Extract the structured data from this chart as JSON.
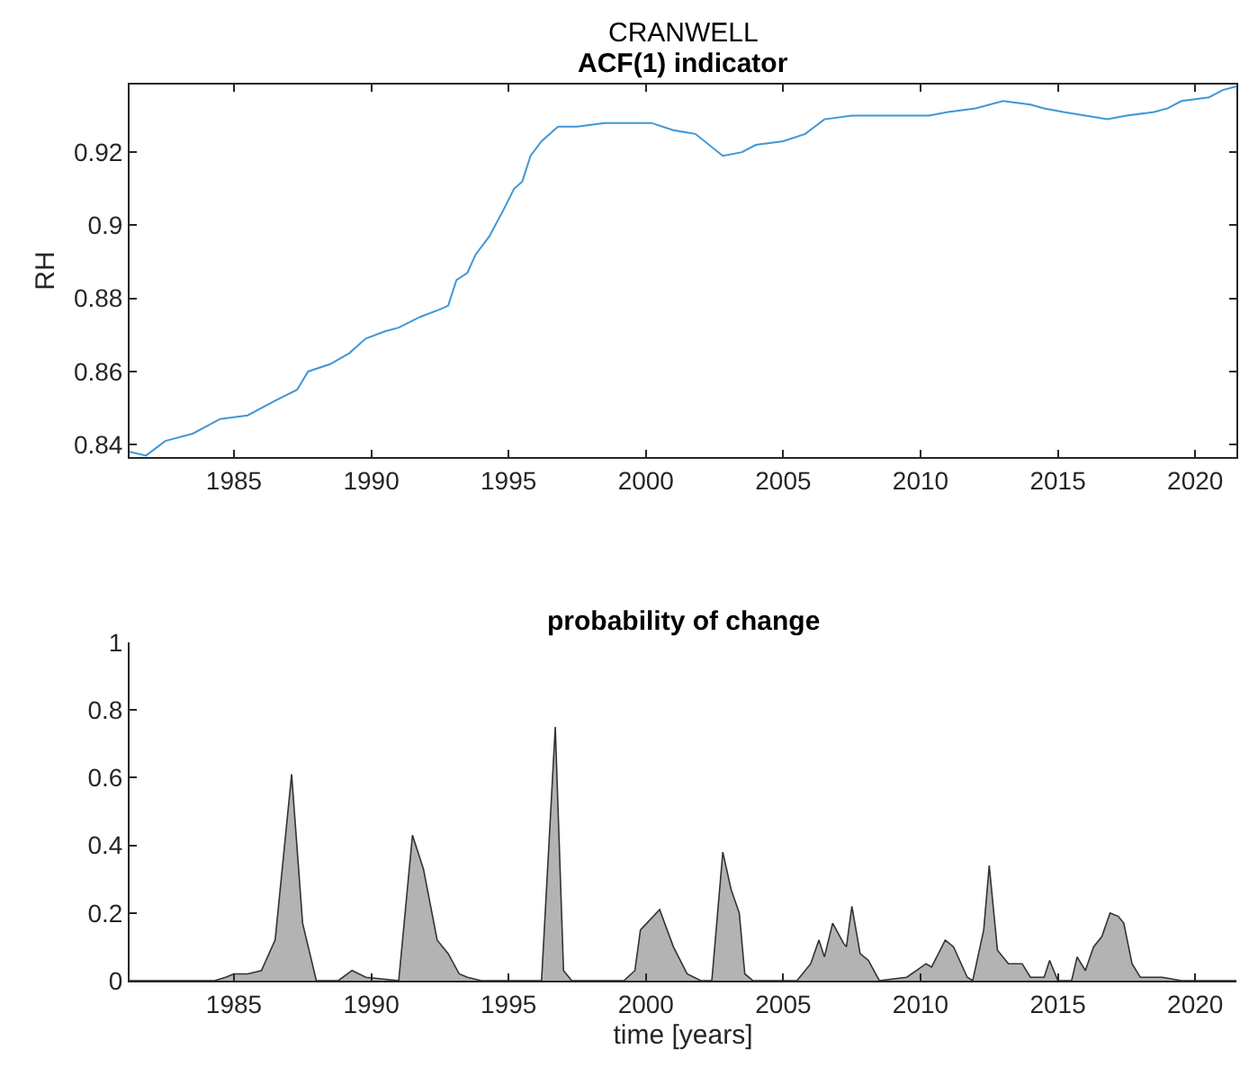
{
  "chart_data": [
    {
      "type": "line",
      "title": "CRANWELL",
      "subtitle": "ACF(1) indicator",
      "ylabel": "RH",
      "xlim": [
        1981.2,
        2021.5
      ],
      "xticks": [
        1985,
        1990,
        1995,
        2000,
        2005,
        2010,
        2015,
        2020
      ],
      "ylim": [
        0.8366,
        0.9385
      ],
      "yticks": [
        0.84,
        0.86,
        0.88,
        0.9,
        0.92
      ],
      "marker": "none",
      "line_style": "solid",
      "x": [
        1981.2,
        1981.8,
        1982.5,
        1983.5,
        1984.5,
        1985.5,
        1986.5,
        1987.3,
        1987.7,
        1988.5,
        1989.2,
        1989.8,
        1990.5,
        1991,
        1991.8,
        1992.5,
        1992.8,
        1993.1,
        1993.5,
        1993.8,
        1994.3,
        1994.8,
        1995.2,
        1995.5,
        1995.8,
        1996.2,
        1996.8,
        1997.5,
        1998.5,
        1999.5,
        2000.2,
        2001,
        2001.8,
        2002.8,
        2003.5,
        2004,
        2005,
        2005.8,
        2006.5,
        2007.5,
        2008.5,
        2009.5,
        2010.3,
        2011,
        2012,
        2013,
        2014,
        2014.5,
        2015.2,
        2016,
        2016.8,
        2017.5,
        2018.5,
        2019,
        2019.5,
        2020.5,
        2021,
        2021.5
      ],
      "series": [
        {
          "color": "#3f97d6",
          "values": [
            0.838,
            0.837,
            0.841,
            0.843,
            0.847,
            0.848,
            0.852,
            0.855,
            0.86,
            0.862,
            0.865,
            0.869,
            0.871,
            0.872,
            0.875,
            0.877,
            0.878,
            0.885,
            0.887,
            0.892,
            0.897,
            0.904,
            0.91,
            0.912,
            0.919,
            0.923,
            0.927,
            0.927,
            0.928,
            0.928,
            0.928,
            0.926,
            0.925,
            0.919,
            0.92,
            0.922,
            0.923,
            0.925,
            0.929,
            0.93,
            0.93,
            0.93,
            0.93,
            0.931,
            0.932,
            0.934,
            0.933,
            0.932,
            0.931,
            0.93,
            0.929,
            0.93,
            0.931,
            0.932,
            0.934,
            0.935,
            0.937,
            0.938
          ]
        }
      ]
    },
    {
      "type": "area",
      "title": "probability of change",
      "xlabel": "time [years]",
      "xlim": [
        1981.2,
        2021.5
      ],
      "xticks": [
        1985,
        1990,
        1995,
        2000,
        2005,
        2010,
        2015,
        2020
      ],
      "ylim": [
        0,
        1
      ],
      "yticks": [
        0,
        0.2,
        0.4,
        0.6,
        0.8,
        1
      ],
      "x": [
        1981.2,
        1984.3,
        1984.7,
        1985,
        1985.5,
        1986,
        1986.5,
        1987.1,
        1987.5,
        1988,
        1988.8,
        1989.3,
        1989.8,
        1991,
        1991.5,
        1991.9,
        1992.4,
        1992.8,
        1993.2,
        1993.5,
        1994,
        1996.2,
        1996.7,
        1997,
        1997.3,
        1999.2,
        1999.6,
        1999.8,
        2000.5,
        2001,
        2001.5,
        2002,
        2002.4,
        2002.8,
        2003.1,
        2003.4,
        2003.6,
        2003.9,
        2005.5,
        2006,
        2006.3,
        2006.5,
        2006.8,
        2007.2,
        2007.3,
        2007.5,
        2007.8,
        2008.1,
        2008.5,
        2009.5,
        2010.2,
        2010.4,
        2010.9,
        2011.2,
        2011.7,
        2011.9,
        2012.3,
        2012.5,
        2012.8,
        2013.2,
        2013.7,
        2014,
        2014.5,
        2014.7,
        2015,
        2015.5,
        2015.7,
        2016,
        2016.3,
        2016.6,
        2016.9,
        2017.2,
        2017.4,
        2017.7,
        2018,
        2018.8,
        2019.5,
        2021.5
      ],
      "series": [
        {
          "color": "#b3b3b3",
          "values": [
            0,
            0,
            0.01,
            0.02,
            0.02,
            0.03,
            0.12,
            0.61,
            0.17,
            0,
            0,
            0.03,
            0.01,
            0,
            0.43,
            0.33,
            0.12,
            0.08,
            0.02,
            0.01,
            0,
            0,
            0.75,
            0.03,
            0,
            0,
            0.03,
            0.15,
            0.21,
            0.1,
            0.02,
            0,
            0,
            0.38,
            0.27,
            0.2,
            0.02,
            0,
            0,
            0.05,
            0.12,
            0.07,
            0.17,
            0.11,
            0.1,
            0.22,
            0.08,
            0.06,
            0,
            0.01,
            0.05,
            0.04,
            0.12,
            0.1,
            0.01,
            0,
            0.15,
            0.34,
            0.09,
            0.05,
            0.05,
            0.01,
            0.01,
            0.06,
            0,
            0,
            0.07,
            0.03,
            0.1,
            0.13,
            0.2,
            0.19,
            0.17,
            0.05,
            0.01,
            0.01,
            0,
            0
          ]
        }
      ]
    }
  ]
}
